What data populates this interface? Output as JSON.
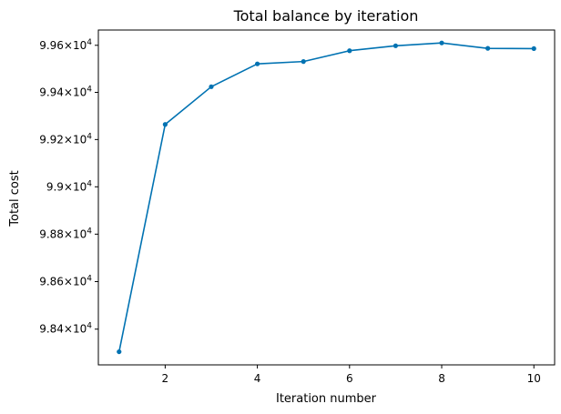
{
  "chart_data": {
    "type": "line",
    "title": "Total balance by iteration",
    "xlabel": "Iteration number",
    "ylabel": "Total cost",
    "x": [
      1,
      2,
      3,
      4,
      5,
      6,
      7,
      8,
      9,
      10
    ],
    "series": [
      {
        "color": "#0072b2",
        "marker": "circle",
        "values": [
          98305,
          99264,
          99424,
          99521,
          99531,
          99577,
          99598,
          99610,
          99587,
          99586
        ]
      }
    ],
    "xlim": [
      0.55,
      10.45
    ],
    "ylim": [
      98250,
      99665
    ],
    "y_scale": "log",
    "grid": false,
    "xticks": [
      {
        "value": 2,
        "label": "2"
      },
      {
        "value": 4,
        "label": "4"
      },
      {
        "value": 6,
        "label": "6"
      },
      {
        "value": 8,
        "label": "8"
      },
      {
        "value": 10,
        "label": "10"
      }
    ],
    "yticks": [
      {
        "value": 98400,
        "mantissa": "9.84",
        "base": "10",
        "exp": "4"
      },
      {
        "value": 98600,
        "mantissa": "9.86",
        "base": "10",
        "exp": "4"
      },
      {
        "value": 98800,
        "mantissa": "9.88",
        "base": "10",
        "exp": "4"
      },
      {
        "value": 99000,
        "mantissa": "9.9",
        "base": "10",
        "exp": "4"
      },
      {
        "value": 99200,
        "mantissa": "9.92",
        "base": "10",
        "exp": "4"
      },
      {
        "value": 99400,
        "mantissa": "9.94",
        "base": "10",
        "exp": "4"
      },
      {
        "value": 99600,
        "mantissa": "9.96",
        "base": "10",
        "exp": "4"
      }
    ]
  }
}
